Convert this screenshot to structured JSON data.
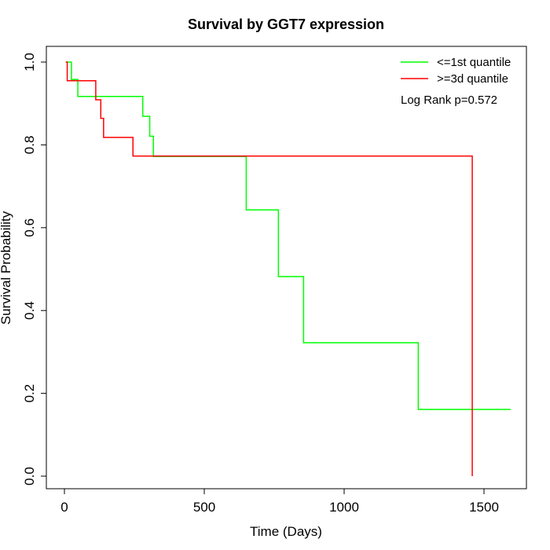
{
  "chart_data": {
    "type": "line",
    "title": "Survival by GGT7 expression",
    "xlabel": "Time (Days)",
    "ylabel": "Survival Probability",
    "xlim": [
      0,
      1650
    ],
    "ylim": [
      0,
      1.0
    ],
    "x_ticks": [
      0,
      500,
      1000,
      1500
    ],
    "x_tick_labels": [
      "0",
      "500",
      "1000",
      "1500"
    ],
    "y_ticks": [
      0.0,
      0.2,
      0.4,
      0.6,
      0.8,
      1.0
    ],
    "y_tick_labels": [
      "0.0",
      "0.2",
      "0.4",
      "0.6",
      "0.8",
      "1.0"
    ],
    "grid": false,
    "legend_position": "top-right",
    "annotation": "Log Rank p=0.572",
    "series": [
      {
        "name": "<=1st quantile",
        "color": "#00FF00",
        "step": true,
        "points": [
          [
            5,
            1.0
          ],
          [
            25,
            0.958
          ],
          [
            48,
            0.917
          ],
          [
            280,
            0.869
          ],
          [
            305,
            0.821
          ],
          [
            318,
            0.772
          ],
          [
            650,
            0.643
          ],
          [
            765,
            0.482
          ],
          [
            855,
            0.322
          ],
          [
            1265,
            0.161
          ],
          [
            1595,
            0.161
          ]
        ]
      },
      {
        "name": ">=3d quantile",
        "color": "#FF0000",
        "step": true,
        "points": [
          [
            5,
            1.0
          ],
          [
            10,
            0.955
          ],
          [
            112,
            0.909
          ],
          [
            130,
            0.864
          ],
          [
            140,
            0.818
          ],
          [
            245,
            0.773
          ],
          [
            1458,
            0.0
          ]
        ]
      }
    ]
  }
}
